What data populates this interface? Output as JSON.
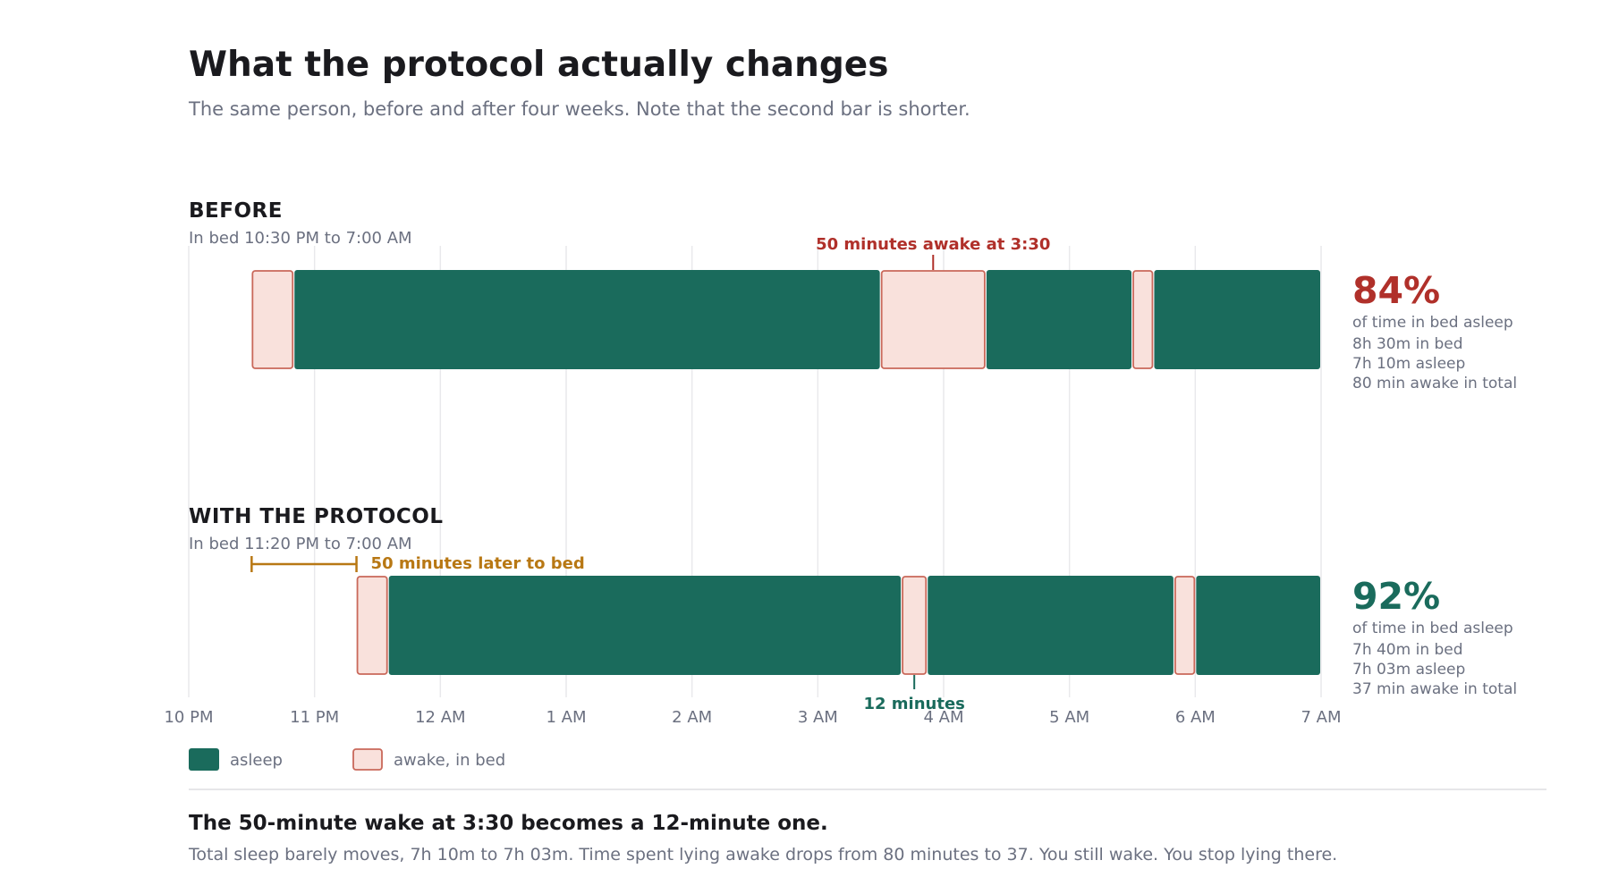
{
  "header": {
    "title": "What the protocol actually changes",
    "subtitle": "The same person, before and after four weeks. Note that the second bar is shorter."
  },
  "colors": {
    "asleep": "#1a6b5c",
    "awake_fill": "#f9e1dc",
    "awake_stroke": "#c9685a",
    "red_accent": "#b0302a",
    "green_accent": "#1a6b5c",
    "orange_accent": "#b87814",
    "grid": "#e9e9ec",
    "muted_text": "#6b7080",
    "dark_text": "#1a1a1e"
  },
  "chart_data": {
    "type": "timeline",
    "x_unit": "clock time (hours after 10 PM)",
    "xlim": [
      "10 PM",
      "7 AM"
    ],
    "x_ticks": [
      "10 PM",
      "11 PM",
      "12 AM",
      "1 AM",
      "2 AM",
      "3 AM",
      "4 AM",
      "5 AM",
      "6 AM",
      "7 AM"
    ],
    "grid": true,
    "legend": {
      "placement": "bottom-left",
      "items": [
        {
          "key": "asleep",
          "label": "asleep"
        },
        {
          "key": "awake",
          "label": "awake, in bed"
        }
      ]
    },
    "rows": [
      {
        "id": "before",
        "label": "BEFORE",
        "sublabel": "In bed 10:30 PM to 7:00 AM",
        "segments": [
          {
            "state": "awake",
            "start": "10:30 PM",
            "end": "10:50 PM"
          },
          {
            "state": "asleep",
            "start": "10:50 PM",
            "end": "3:30 AM"
          },
          {
            "state": "awake",
            "start": "3:30 AM",
            "end": "4:20 AM"
          },
          {
            "state": "asleep",
            "start": "4:20 AM",
            "end": "5:30 AM"
          },
          {
            "state": "awake",
            "start": "5:30 AM",
            "end": "5:40 AM"
          },
          {
            "state": "asleep",
            "start": "5:40 AM",
            "end": "7:00 AM"
          }
        ],
        "callout": {
          "text": "50 minutes awake at 3:30",
          "at": "3:55 AM",
          "position": "above"
        },
        "stat": {
          "value": "84%",
          "label": "of time in bed asleep",
          "lines": [
            "8h 30m in bed",
            "7h 10m asleep",
            "80 min awake in total"
          ]
        }
      },
      {
        "id": "protocol",
        "label": "WITH THE PROTOCOL",
        "sublabel": "In bed 11:20 PM to 7:00 AM",
        "segments": [
          {
            "state": "awake",
            "start": "11:20 PM",
            "end": "11:35 PM"
          },
          {
            "state": "asleep",
            "start": "11:35 PM",
            "end": "3:40 AM"
          },
          {
            "state": "awake",
            "start": "3:40 AM",
            "end": "3:52 AM"
          },
          {
            "state": "asleep",
            "start": "3:52 AM",
            "end": "5:50 AM"
          },
          {
            "state": "awake",
            "start": "5:50 AM",
            "end": "6:00 AM"
          },
          {
            "state": "asleep",
            "start": "6:00 AM",
            "end": "7:00 AM"
          }
        ],
        "shift": {
          "text": "50 minutes later to bed",
          "from": "10:30 PM",
          "to": "11:20 PM"
        },
        "callout": {
          "text": "12 minutes",
          "at": "3:46 AM",
          "position": "below"
        },
        "stat": {
          "value": "92%",
          "label": "of time in bed asleep",
          "lines": [
            "7h 40m in bed",
            "7h 03m asleep",
            "37 min awake in total"
          ]
        }
      }
    ]
  },
  "footer": {
    "headline": "The 50-minute wake at 3:30 becomes a 12-minute one.",
    "body": "Total sleep barely moves, 7h 10m to 7h 03m. Time spent lying awake drops from 80 minutes to 37. You still wake. You stop lying there."
  }
}
